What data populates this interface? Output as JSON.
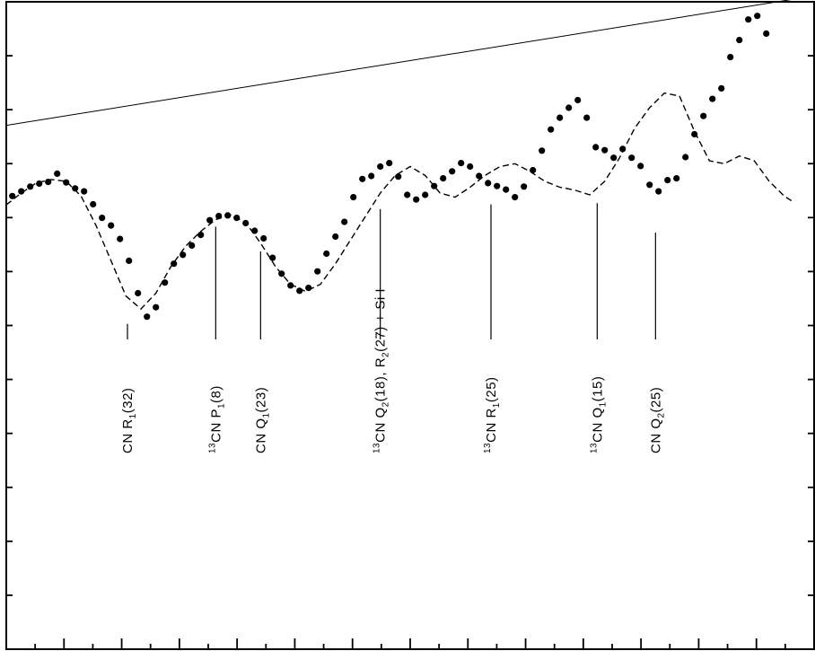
{
  "chart_data": {
    "type": "scatter",
    "title": "",
    "xlabel": "",
    "ylabel": "",
    "xlim": [
      0,
      27
    ],
    "ylim": [
      0,
      11
    ],
    "x_tick_count": 28,
    "y_tick_count": 12,
    "grid": false,
    "series": [
      {
        "style": "points",
        "x": [
          0.2,
          0.5,
          0.8,
          1.1,
          1.4,
          1.7,
          2.0,
          2.3,
          2.6,
          2.9,
          3.2,
          3.5,
          3.8,
          4.1,
          4.4,
          4.7,
          5.0,
          5.3,
          5.6,
          5.9,
          6.2,
          6.5,
          6.8,
          7.1,
          7.4,
          7.7,
          8.0,
          8.3,
          8.6,
          8.9,
          9.2,
          9.5,
          9.8,
          10.1,
          10.4,
          10.7,
          11.0,
          11.3,
          11.6,
          11.9,
          12.2,
          12.5,
          12.8,
          13.1,
          13.4,
          13.7,
          14.0,
          14.3,
          14.6,
          14.9,
          15.2,
          15.5,
          15.8,
          16.1,
          16.4,
          16.7,
          17.0,
          17.3,
          17.6,
          17.9,
          18.2,
          18.5,
          18.8,
          19.1,
          19.4,
          19.7,
          20.0,
          20.3,
          20.6,
          20.9,
          21.2,
          21.5,
          21.8,
          22.1,
          22.4,
          22.7,
          23.0,
          23.3,
          23.6,
          23.9,
          24.2,
          24.5,
          24.8,
          25.1,
          25.4
        ],
        "y": [
          7.7,
          7.78,
          7.86,
          7.91,
          7.94,
          8.08,
          7.93,
          7.83,
          7.78,
          7.56,
          7.33,
          7.2,
          6.97,
          6.6,
          6.05,
          5.65,
          5.81,
          6.23,
          6.55,
          6.7,
          6.86,
          7.04,
          7.29,
          7.36,
          7.37,
          7.33,
          7.24,
          7.11,
          6.98,
          6.65,
          6.38,
          6.18,
          6.09,
          6.14,
          6.42,
          6.72,
          7.01,
          7.26,
          7.68,
          7.99,
          8.04,
          8.2,
          8.26,
          8.03,
          7.72,
          7.64,
          7.72,
          7.87,
          8.0,
          8.12,
          8.26,
          8.2,
          8.04,
          7.92,
          7.87,
          7.81,
          7.68,
          7.86,
          8.14,
          8.47,
          8.83,
          9.03,
          9.2,
          9.33,
          9.03,
          8.53,
          8.48,
          8.35,
          8.5,
          8.35,
          8.21,
          7.89,
          7.78,
          7.97,
          8.0,
          8.36,
          8.75,
          9.06,
          9.35,
          9.53,
          10.06,
          10.35,
          10.7,
          10.76,
          10.46
        ]
      },
      {
        "style": "dashed-fit",
        "x": [
          0,
          0.5,
          1.0,
          1.5,
          2.0,
          2.5,
          3.0,
          3.5,
          4.0,
          4.5,
          5.0,
          5.5,
          6.0,
          6.5,
          7.0,
          7.5,
          8.0,
          8.5,
          9.0,
          9.5,
          10.0,
          10.5,
          11.0,
          11.5,
          12.0,
          12.5,
          13.0,
          13.5,
          14.0,
          14.5,
          15.0,
          15.5,
          16.0,
          16.5,
          17.0,
          17.5,
          18.0,
          18.5,
          19.0,
          19.5,
          20.0,
          20.5,
          21.0,
          21.5,
          22.0,
          22.5,
          23.0,
          23.5,
          24.0,
          24.5,
          25.0,
          25.5,
          26.0,
          26.3
        ],
        "y": [
          7.55,
          7.75,
          7.92,
          7.98,
          7.95,
          7.7,
          7.2,
          6.6,
          6.0,
          5.78,
          6.05,
          6.5,
          6.85,
          7.1,
          7.3,
          7.38,
          7.25,
          6.9,
          6.5,
          6.2,
          6.08,
          6.2,
          6.55,
          6.95,
          7.35,
          7.75,
          8.05,
          8.2,
          8.05,
          7.75,
          7.68,
          7.85,
          8.05,
          8.2,
          8.25,
          8.12,
          7.95,
          7.85,
          7.8,
          7.72,
          7.95,
          8.35,
          8.85,
          9.2,
          9.45,
          9.4,
          8.8,
          8.3,
          8.25,
          8.38,
          8.3,
          7.95,
          7.7,
          7.6
        ]
      },
      {
        "style": "solid-continuum",
        "x": [
          0,
          27
        ],
        "y": [
          8.9,
          11.1
        ]
      }
    ],
    "annotations": [
      {
        "x": 4.05,
        "y_top": 5.65,
        "parts": [
          {
            "t": "CN R"
          },
          {
            "t": "1",
            "sub": true
          },
          {
            "t": "(32)"
          }
        ]
      },
      {
        "x": 7.0,
        "y_top": 7.3,
        "parts": [
          {
            "t": "13",
            "sup": true
          },
          {
            "t": "CN P"
          },
          {
            "t": "1",
            "sub": true
          },
          {
            "t": "(8)"
          }
        ]
      },
      {
        "x": 8.5,
        "y_top": 6.88,
        "parts": [
          {
            "t": "CN Q"
          },
          {
            "t": "1",
            "sub": true
          },
          {
            "t": "(23)"
          }
        ]
      },
      {
        "x": 12.5,
        "y_top": 7.6,
        "parts": [
          {
            "t": "13",
            "sup": true
          },
          {
            "t": "CN  Q"
          },
          {
            "t": "2",
            "sub": true
          },
          {
            "t": "(18), R"
          },
          {
            "t": "2",
            "sub": true
          },
          {
            "t": "(27) + Si I"
          }
        ]
      },
      {
        "x": 16.2,
        "y_top": 7.68,
        "parts": [
          {
            "t": "13",
            "sup": true
          },
          {
            "t": "CN  R"
          },
          {
            "t": "1",
            "sub": true
          },
          {
            "t": "(25)"
          }
        ]
      },
      {
        "x": 19.75,
        "y_top": 7.7,
        "parts": [
          {
            "t": "13",
            "sup": true
          },
          {
            "t": "CN  Q"
          },
          {
            "t": "1",
            "sub": true
          },
          {
            "t": "(15)"
          }
        ]
      },
      {
        "x": 21.7,
        "y_top": 7.2,
        "parts": [
          {
            "t": "CN Q"
          },
          {
            "t": "2",
            "sub": true
          },
          {
            "t": "(25)"
          }
        ]
      }
    ]
  }
}
